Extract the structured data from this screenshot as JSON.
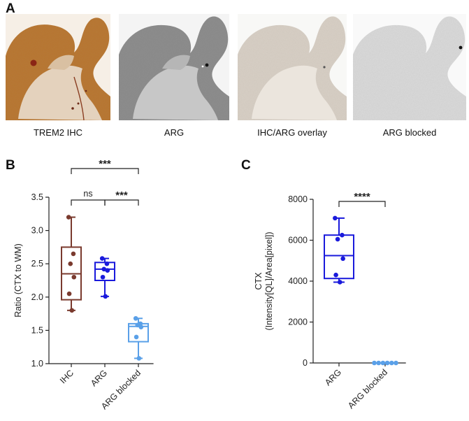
{
  "panels": {
    "a": {
      "letter": "A",
      "images": [
        {
          "label": "TREM2 IHC"
        },
        {
          "label": "ARG"
        },
        {
          "label": "IHC/ARG overlay"
        },
        {
          "label": "ARG blocked"
        }
      ]
    },
    "b": {
      "letter": "B"
    },
    "c": {
      "letter": "C"
    }
  },
  "chart_data": [
    {
      "type": "box",
      "panel": "B",
      "ylabel": "Ratio (CTX to WM)",
      "ylim": [
        1.0,
        3.5
      ],
      "yticks": [
        1.0,
        1.5,
        2.0,
        2.5,
        3.0,
        3.5
      ],
      "ytick_labels": [
        "1.0",
        "1.5",
        "2.0",
        "2.5",
        "3.0",
        "3.5"
      ],
      "categories": [
        "IHC",
        "ARG",
        "ARG blocked"
      ],
      "colors": [
        "#7a3a2e",
        "#1a1adc",
        "#5aa0e8"
      ],
      "boxes": [
        {
          "min": 1.8,
          "q1": 1.96,
          "median": 2.35,
          "q3": 2.75,
          "max": 3.2
        },
        {
          "min": 2.01,
          "q1": 2.25,
          "median": 2.42,
          "q3": 2.52,
          "max": 2.58
        },
        {
          "min": 1.08,
          "q1": 1.33,
          "median": 1.56,
          "q3": 1.6,
          "max": 1.68
        }
      ],
      "points": [
        [
          3.2,
          2.65,
          2.5,
          2.3,
          2.05,
          1.8
        ],
        [
          2.58,
          2.5,
          2.42,
          2.4,
          2.3,
          2.01
        ],
        [
          1.68,
          1.6,
          1.58,
          1.55,
          1.4,
          1.08
        ]
      ],
      "comparisons": [
        {
          "from": 0,
          "to": 1,
          "label": "ns"
        },
        {
          "from": 1,
          "to": 2,
          "label": "***"
        },
        {
          "from": 0,
          "to": 2,
          "label": "***"
        }
      ]
    },
    {
      "type": "box",
      "panel": "C",
      "ylabel_lines": [
        "CTX",
        "(Intensity[QL]/Area[pixel])"
      ],
      "ylim": [
        0,
        8000
      ],
      "yticks": [
        0,
        2000,
        4000,
        6000,
        8000
      ],
      "ytick_labels": [
        "0",
        "2000",
        "4000",
        "6000",
        "8000"
      ],
      "categories": [
        "ARG",
        "ARG blocked"
      ],
      "colors": [
        "#1a1adc",
        "#5aa0e8"
      ],
      "boxes": [
        {
          "min": 3950,
          "q1": 4130,
          "median": 5250,
          "q3": 6250,
          "max": 7080
        },
        {
          "min": 0,
          "q1": 0,
          "median": 0,
          "q3": 0,
          "max": 0
        }
      ],
      "points": [
        [
          7080,
          6250,
          6050,
          5100,
          4300,
          3950
        ],
        [
          0,
          0,
          0,
          0,
          0,
          0
        ]
      ],
      "comparisons": [
        {
          "from": 0,
          "to": 1,
          "label": "****"
        }
      ]
    }
  ]
}
